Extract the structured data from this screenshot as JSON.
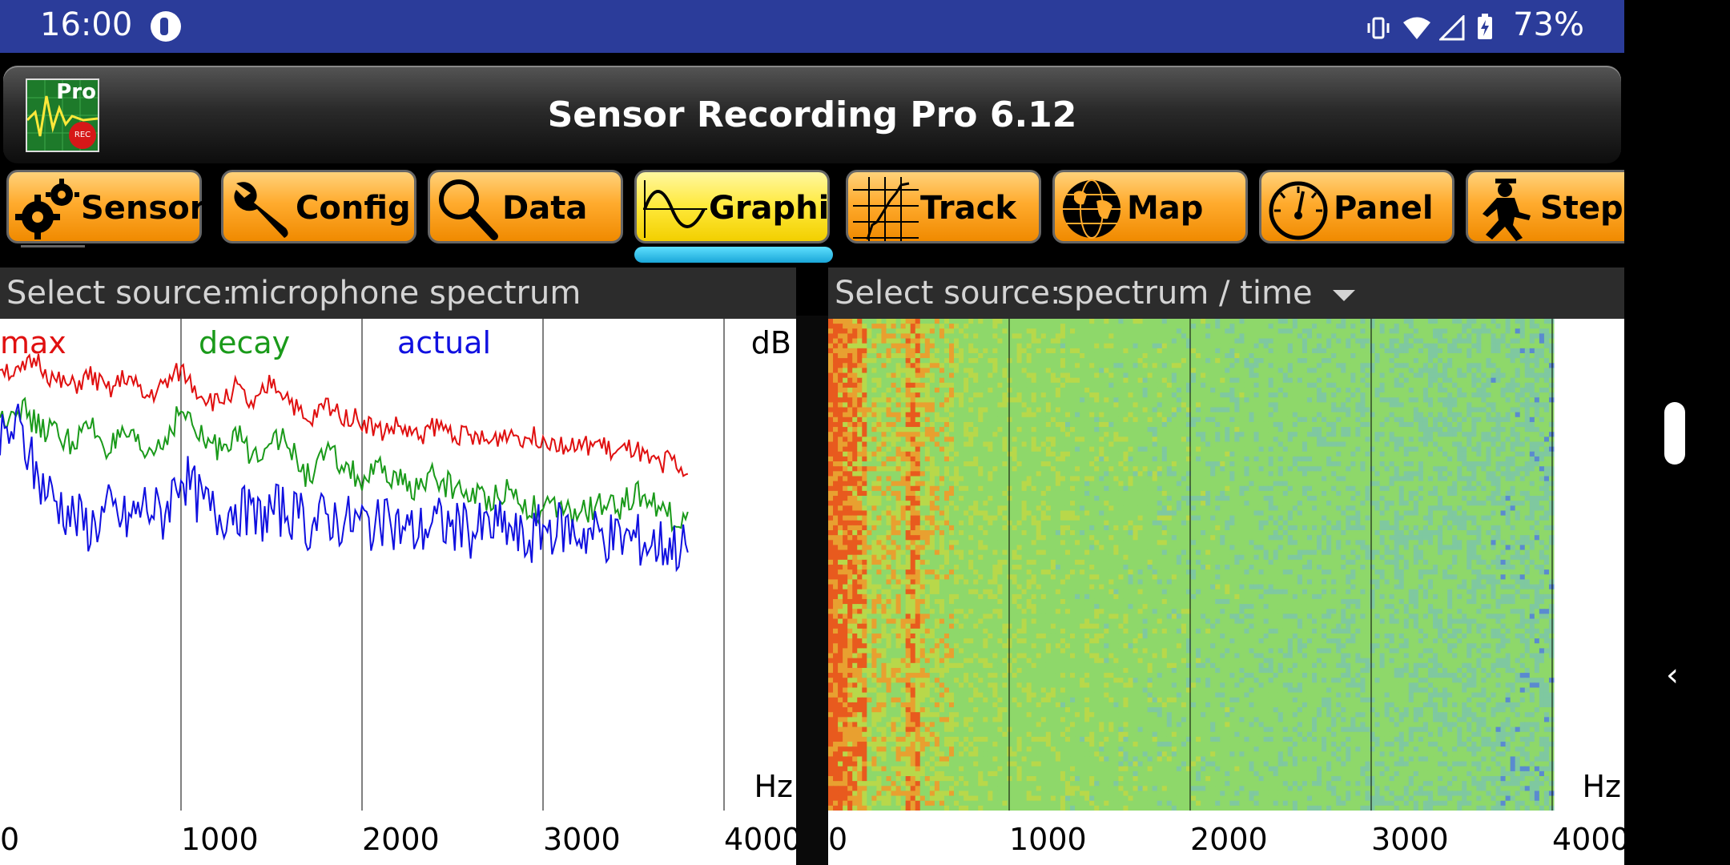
{
  "status": {
    "time": "16:00",
    "battery": "73%"
  },
  "app": {
    "title": "Sensor Recording Pro 6.12",
    "logo_text": "Pro",
    "logo_badge": "REC"
  },
  "tabs": [
    {
      "label": "Sensors",
      "icon": "gears-icon",
      "active": false
    },
    {
      "label": "Config",
      "icon": "wrench-icon",
      "active": false
    },
    {
      "label": "Data",
      "icon": "magnifier-icon",
      "active": false
    },
    {
      "label": "Graphic",
      "icon": "sine-wave-icon",
      "active": true
    },
    {
      "label": "Track",
      "icon": "track-grid-icon",
      "active": false
    },
    {
      "label": "Map",
      "icon": "globe-icon",
      "active": false
    },
    {
      "label": "Panel",
      "icon": "gauge-icon",
      "active": false
    },
    {
      "label": "Steps",
      "icon": "walking-man-icon",
      "active": false
    }
  ],
  "left_panel": {
    "source_label": "Select source:",
    "source_value": "microphone spectrum",
    "legend": [
      {
        "label": "max",
        "color": "#e01010"
      },
      {
        "label": "decay",
        "color": "#1a9a1a"
      },
      {
        "label": "actual",
        "color": "#1010e0"
      }
    ],
    "y_unit": "dB",
    "x_unit": "Hz",
    "x_ticks": [
      "0",
      "1000",
      "2000",
      "3000",
      "4000"
    ]
  },
  "right_panel": {
    "source_label": "Select source:",
    "source_value": "spectrum / time",
    "x_unit": "Hz",
    "x_ticks": [
      "0",
      "1000",
      "2000",
      "3000",
      "4000"
    ]
  },
  "chart_data": [
    {
      "type": "line",
      "xlabel": "Hz",
      "ylabel": "dB",
      "xlim": [
        0,
        4000
      ],
      "grid": true,
      "series": [
        {
          "name": "max",
          "color": "#e01010",
          "x": [
            0,
            100,
            200,
            300,
            400,
            500,
            600,
            700,
            800,
            900,
            1000,
            1100,
            1200,
            1300,
            1400,
            1500,
            1600,
            1700,
            1800,
            1900,
            2000,
            2100,
            2200,
            2300,
            2400,
            2500,
            2600,
            2700,
            2800,
            2900,
            3000,
            3100,
            3200,
            3300,
            3400,
            3500,
            3600,
            3700,
            3800,
            3900,
            4000
          ],
          "y": [
            84,
            82,
            85,
            81,
            80,
            82,
            79,
            82,
            78,
            80,
            83,
            79,
            77,
            80,
            76,
            81,
            78,
            73,
            77,
            75,
            74,
            72,
            73,
            71,
            73,
            72,
            71,
            70,
            72,
            71,
            71,
            70,
            69,
            70,
            68,
            69,
            66,
            67,
            64,
            63,
            60
          ]
        },
        {
          "name": "decay",
          "color": "#1a9a1a",
          "x": [
            0,
            100,
            200,
            300,
            400,
            500,
            600,
            700,
            800,
            900,
            1000,
            1100,
            1200,
            1300,
            1400,
            1500,
            1600,
            1700,
            1800,
            1900,
            2000,
            2100,
            2200,
            2300,
            2400,
            2500,
            2600,
            2700,
            2800,
            2900,
            3000,
            3100,
            3200,
            3300,
            3400,
            3500,
            3600,
            3700,
            3800,
            3900,
            4000
          ],
          "y": [
            74,
            77,
            73,
            72,
            70,
            73,
            69,
            71,
            68,
            70,
            76,
            71,
            69,
            72,
            67,
            72,
            69,
            64,
            68,
            66,
            63,
            65,
            63,
            62,
            64,
            62,
            61,
            60,
            62,
            59,
            58,
            58,
            57,
            59,
            58,
            61,
            60,
            57,
            56,
            55,
            54
          ]
        },
        {
          "name": "actual",
          "color": "#1010e0",
          "x": [
            0,
            100,
            200,
            300,
            400,
            500,
            600,
            700,
            800,
            900,
            1000,
            1100,
            1200,
            1300,
            1400,
            1500,
            1600,
            1700,
            1800,
            1900,
            2000,
            2100,
            2200,
            2300,
            2400,
            2500,
            2600,
            2700,
            2800,
            2900,
            3000,
            3100,
            3200,
            3300,
            3400,
            3500,
            3600,
            3700,
            3800,
            3900,
            4000
          ],
          "y": [
            70,
            73,
            64,
            60,
            57,
            55,
            58,
            56,
            59,
            57,
            65,
            60,
            57,
            59,
            56,
            58,
            58,
            55,
            57,
            56,
            56,
            55,
            55,
            54,
            56,
            55,
            54,
            55,
            55,
            52,
            55,
            55,
            54,
            54,
            53,
            53,
            52,
            52,
            51,
            51,
            49
          ]
        }
      ]
    },
    {
      "type": "heatmap",
      "xlabel": "Hz",
      "xlim": [
        0,
        4000
      ]
    }
  ]
}
